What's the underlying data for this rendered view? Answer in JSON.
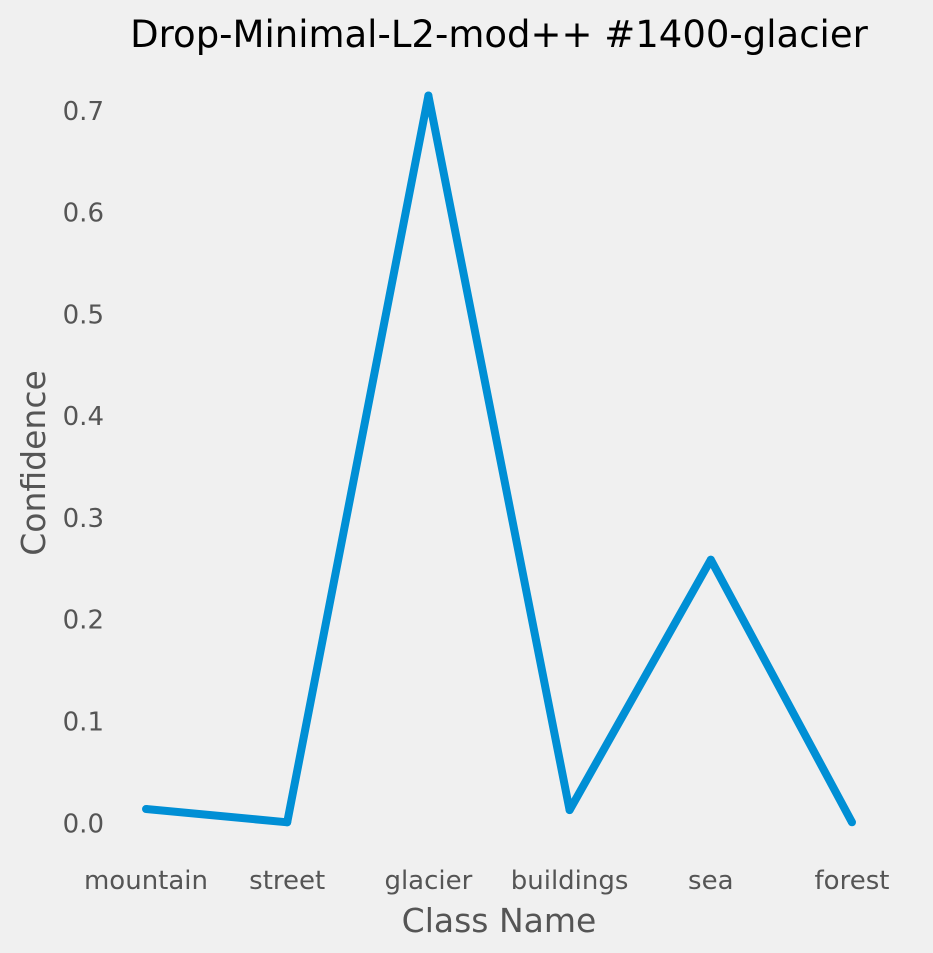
{
  "chart_data": {
    "type": "line",
    "title": "Drop-Minimal-L2-mod++ #1400-glacier",
    "xlabel": "Class Name",
    "ylabel": "Confidence",
    "categories": [
      "mountain",
      "street",
      "glacier",
      "buildings",
      "sea",
      "forest"
    ],
    "series": [
      {
        "values": [
          0.014,
          0.001,
          0.715,
          0.013,
          0.259,
          0.001
        ]
      }
    ],
    "yticks": [
      "0.0",
      "0.1",
      "0.2",
      "0.3",
      "0.4",
      "0.5",
      "0.6",
      "0.7"
    ],
    "ylim": [
      -0.04,
      0.75
    ],
    "grid": false,
    "line_color": "#008fd5",
    "background_color": "#f0f0f0"
  }
}
